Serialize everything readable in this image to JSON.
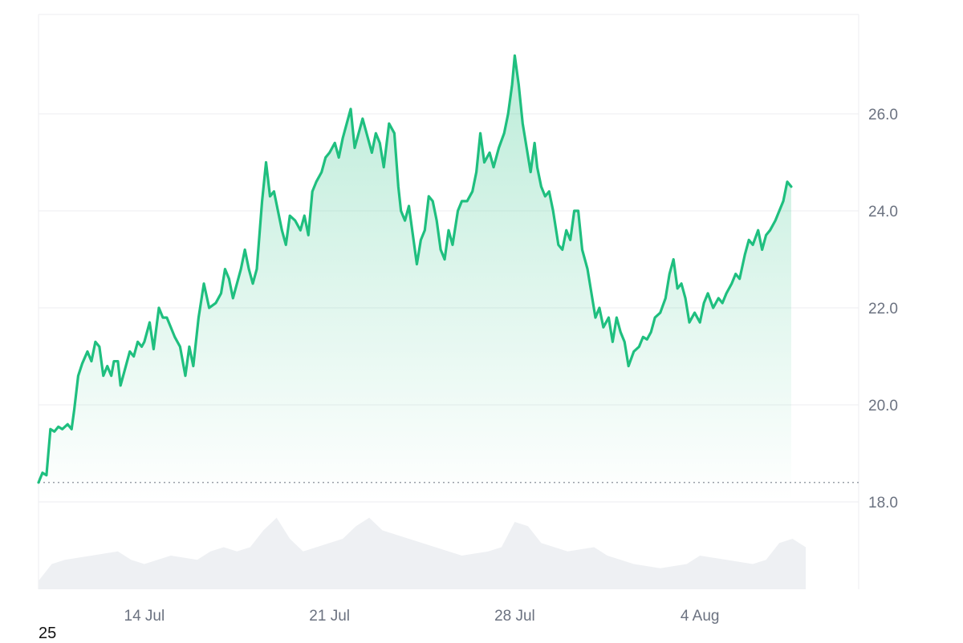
{
  "corner_label": "25",
  "chart_data": {
    "type": "area",
    "title": "",
    "xlabel": "",
    "ylabel": "",
    "ylim": [
      18.0,
      27.7
    ],
    "grid": true,
    "y_ticks": [
      "18.0",
      "20.0",
      "22.0",
      "24.0",
      "26.0"
    ],
    "x_ticks": [
      {
        "label": "14 Jul",
        "day": 4
      },
      {
        "label": "21 Jul",
        "day": 11
      },
      {
        "label": "28 Jul",
        "day": 18
      },
      {
        "label": "4 Aug",
        "day": 25
      }
    ],
    "x_range_days": [
      0,
      31
    ],
    "reference_line": 18.4,
    "colors": {
      "line": "#1fbf7f",
      "fill": "#1fbf7f",
      "volume": "#eef0f3",
      "reference": "#9aa0a8"
    },
    "series": [
      {
        "values": [
          [
            0.0,
            18.4
          ],
          [
            0.15,
            18.6
          ],
          [
            0.3,
            18.55
          ],
          [
            0.45,
            19.5
          ],
          [
            0.6,
            19.45
          ],
          [
            0.75,
            19.55
          ],
          [
            0.9,
            19.5
          ],
          [
            1.1,
            19.6
          ],
          [
            1.25,
            19.5
          ],
          [
            1.35,
            19.9
          ],
          [
            1.5,
            20.6
          ],
          [
            1.65,
            20.85
          ],
          [
            1.85,
            21.1
          ],
          [
            2.0,
            20.9
          ],
          [
            2.15,
            21.3
          ],
          [
            2.3,
            21.2
          ],
          [
            2.45,
            20.6
          ],
          [
            2.6,
            20.8
          ],
          [
            2.75,
            20.6
          ],
          [
            2.85,
            20.9
          ],
          [
            3.0,
            20.9
          ],
          [
            3.1,
            20.4
          ],
          [
            3.25,
            20.7
          ],
          [
            3.45,
            21.1
          ],
          [
            3.6,
            21.0
          ],
          [
            3.75,
            21.3
          ],
          [
            3.9,
            21.2
          ],
          [
            4.0,
            21.3
          ],
          [
            4.2,
            21.7
          ],
          [
            4.35,
            21.15
          ],
          [
            4.55,
            22.0
          ],
          [
            4.7,
            21.8
          ],
          [
            4.85,
            21.8
          ],
          [
            5.0,
            21.6
          ],
          [
            5.15,
            21.4
          ],
          [
            5.35,
            21.2
          ],
          [
            5.55,
            20.6
          ],
          [
            5.7,
            21.2
          ],
          [
            5.85,
            20.8
          ],
          [
            6.05,
            21.8
          ],
          [
            6.25,
            22.5
          ],
          [
            6.45,
            22.0
          ],
          [
            6.7,
            22.1
          ],
          [
            6.9,
            22.3
          ],
          [
            7.05,
            22.8
          ],
          [
            7.2,
            22.6
          ],
          [
            7.35,
            22.2
          ],
          [
            7.5,
            22.5
          ],
          [
            7.65,
            22.8
          ],
          [
            7.8,
            23.2
          ],
          [
            7.95,
            22.8
          ],
          [
            8.1,
            22.5
          ],
          [
            8.25,
            22.8
          ],
          [
            8.45,
            24.2
          ],
          [
            8.6,
            25.0
          ],
          [
            8.75,
            24.3
          ],
          [
            8.9,
            24.4
          ],
          [
            9.05,
            24.0
          ],
          [
            9.2,
            23.6
          ],
          [
            9.35,
            23.3
          ],
          [
            9.5,
            23.9
          ],
          [
            9.7,
            23.8
          ],
          [
            9.9,
            23.6
          ],
          [
            10.05,
            23.9
          ],
          [
            10.2,
            23.5
          ],
          [
            10.35,
            24.4
          ],
          [
            10.5,
            24.6
          ],
          [
            10.7,
            24.8
          ],
          [
            10.85,
            25.1
          ],
          [
            11.0,
            25.2
          ],
          [
            11.2,
            25.4
          ],
          [
            11.35,
            25.1
          ],
          [
            11.5,
            25.5
          ],
          [
            11.65,
            25.8
          ],
          [
            11.8,
            26.1
          ],
          [
            11.95,
            25.3
          ],
          [
            12.1,
            25.6
          ],
          [
            12.25,
            25.9
          ],
          [
            12.45,
            25.5
          ],
          [
            12.6,
            25.2
          ],
          [
            12.75,
            25.6
          ],
          [
            12.9,
            25.4
          ],
          [
            13.05,
            24.9
          ],
          [
            13.25,
            25.8
          ],
          [
            13.45,
            25.6
          ],
          [
            13.6,
            24.5
          ],
          [
            13.7,
            24.0
          ],
          [
            13.85,
            23.8
          ],
          [
            14.0,
            24.1
          ],
          [
            14.15,
            23.5
          ],
          [
            14.3,
            22.9
          ],
          [
            14.45,
            23.4
          ],
          [
            14.6,
            23.6
          ],
          [
            14.75,
            24.3
          ],
          [
            14.9,
            24.2
          ],
          [
            15.05,
            23.8
          ],
          [
            15.2,
            23.2
          ],
          [
            15.35,
            23.0
          ],
          [
            15.5,
            23.6
          ],
          [
            15.65,
            23.3
          ],
          [
            15.85,
            24.0
          ],
          [
            16.0,
            24.2
          ],
          [
            16.2,
            24.2
          ],
          [
            16.4,
            24.4
          ],
          [
            16.55,
            24.8
          ],
          [
            16.7,
            25.6
          ],
          [
            16.85,
            25.0
          ],
          [
            17.05,
            25.2
          ],
          [
            17.2,
            24.9
          ],
          [
            17.4,
            25.3
          ],
          [
            17.6,
            25.6
          ],
          [
            17.75,
            26.0
          ],
          [
            17.9,
            26.6
          ],
          [
            18.0,
            27.2
          ],
          [
            18.15,
            26.6
          ],
          [
            18.3,
            25.8
          ],
          [
            18.45,
            25.3
          ],
          [
            18.6,
            24.8
          ],
          [
            18.75,
            25.4
          ],
          [
            18.85,
            24.9
          ],
          [
            19.0,
            24.5
          ],
          [
            19.15,
            24.3
          ],
          [
            19.3,
            24.4
          ],
          [
            19.45,
            24.0
          ],
          [
            19.65,
            23.3
          ],
          [
            19.8,
            23.2
          ],
          [
            19.95,
            23.6
          ],
          [
            20.1,
            23.4
          ],
          [
            20.25,
            24.0
          ],
          [
            20.4,
            24.0
          ],
          [
            20.55,
            23.2
          ],
          [
            20.75,
            22.8
          ],
          [
            20.9,
            22.3
          ],
          [
            21.05,
            21.8
          ],
          [
            21.2,
            22.0
          ],
          [
            21.35,
            21.6
          ],
          [
            21.55,
            21.8
          ],
          [
            21.7,
            21.3
          ],
          [
            21.85,
            21.8
          ],
          [
            22.0,
            21.5
          ],
          [
            22.15,
            21.3
          ],
          [
            22.3,
            20.8
          ],
          [
            22.5,
            21.1
          ],
          [
            22.7,
            21.2
          ],
          [
            22.85,
            21.4
          ],
          [
            23.0,
            21.35
          ],
          [
            23.15,
            21.5
          ],
          [
            23.3,
            21.8
          ],
          [
            23.5,
            21.9
          ],
          [
            23.7,
            22.2
          ],
          [
            23.85,
            22.7
          ],
          [
            24.0,
            23.0
          ],
          [
            24.15,
            22.4
          ],
          [
            24.3,
            22.5
          ],
          [
            24.45,
            22.2
          ],
          [
            24.6,
            21.7
          ],
          [
            24.8,
            21.9
          ],
          [
            25.0,
            21.7
          ],
          [
            25.15,
            22.1
          ],
          [
            25.3,
            22.3
          ],
          [
            25.5,
            22.0
          ],
          [
            25.7,
            22.2
          ],
          [
            25.85,
            22.1
          ],
          [
            26.0,
            22.3
          ],
          [
            26.2,
            22.5
          ],
          [
            26.35,
            22.7
          ],
          [
            26.5,
            22.6
          ],
          [
            26.7,
            23.1
          ],
          [
            26.85,
            23.4
          ],
          [
            27.0,
            23.3
          ],
          [
            27.2,
            23.6
          ],
          [
            27.35,
            23.2
          ],
          [
            27.5,
            23.5
          ],
          [
            27.65,
            23.6
          ],
          [
            27.85,
            23.8
          ],
          [
            28.0,
            24.0
          ],
          [
            28.15,
            24.2
          ],
          [
            28.3,
            24.6
          ],
          [
            28.45,
            24.5
          ]
        ]
      }
    ],
    "volume_profile": [
      [
        0.0,
        0.1
      ],
      [
        0.5,
        0.3
      ],
      [
        1.0,
        0.35
      ],
      [
        2.0,
        0.4
      ],
      [
        3.0,
        0.45
      ],
      [
        3.5,
        0.35
      ],
      [
        4.0,
        0.3
      ],
      [
        5.0,
        0.4
      ],
      [
        6.0,
        0.35
      ],
      [
        6.5,
        0.45
      ],
      [
        7.0,
        0.5
      ],
      [
        7.5,
        0.45
      ],
      [
        8.0,
        0.5
      ],
      [
        8.5,
        0.7
      ],
      [
        9.0,
        0.85
      ],
      [
        9.5,
        0.6
      ],
      [
        10.0,
        0.45
      ],
      [
        11.0,
        0.55
      ],
      [
        11.5,
        0.6
      ],
      [
        12.0,
        0.75
      ],
      [
        12.5,
        0.85
      ],
      [
        13.0,
        0.7
      ],
      [
        14.0,
        0.6
      ],
      [
        15.0,
        0.5
      ],
      [
        16.0,
        0.4
      ],
      [
        17.0,
        0.45
      ],
      [
        17.5,
        0.5
      ],
      [
        18.0,
        0.8
      ],
      [
        18.5,
        0.75
      ],
      [
        19.0,
        0.55
      ],
      [
        20.0,
        0.45
      ],
      [
        21.0,
        0.5
      ],
      [
        21.5,
        0.4
      ],
      [
        22.5,
        0.3
      ],
      [
        23.5,
        0.25
      ],
      [
        24.5,
        0.3
      ],
      [
        25.0,
        0.4
      ],
      [
        26.0,
        0.35
      ],
      [
        27.0,
        0.3
      ],
      [
        27.5,
        0.35
      ],
      [
        28.0,
        0.55
      ],
      [
        28.5,
        0.6
      ],
      [
        29.0,
        0.5
      ]
    ]
  }
}
